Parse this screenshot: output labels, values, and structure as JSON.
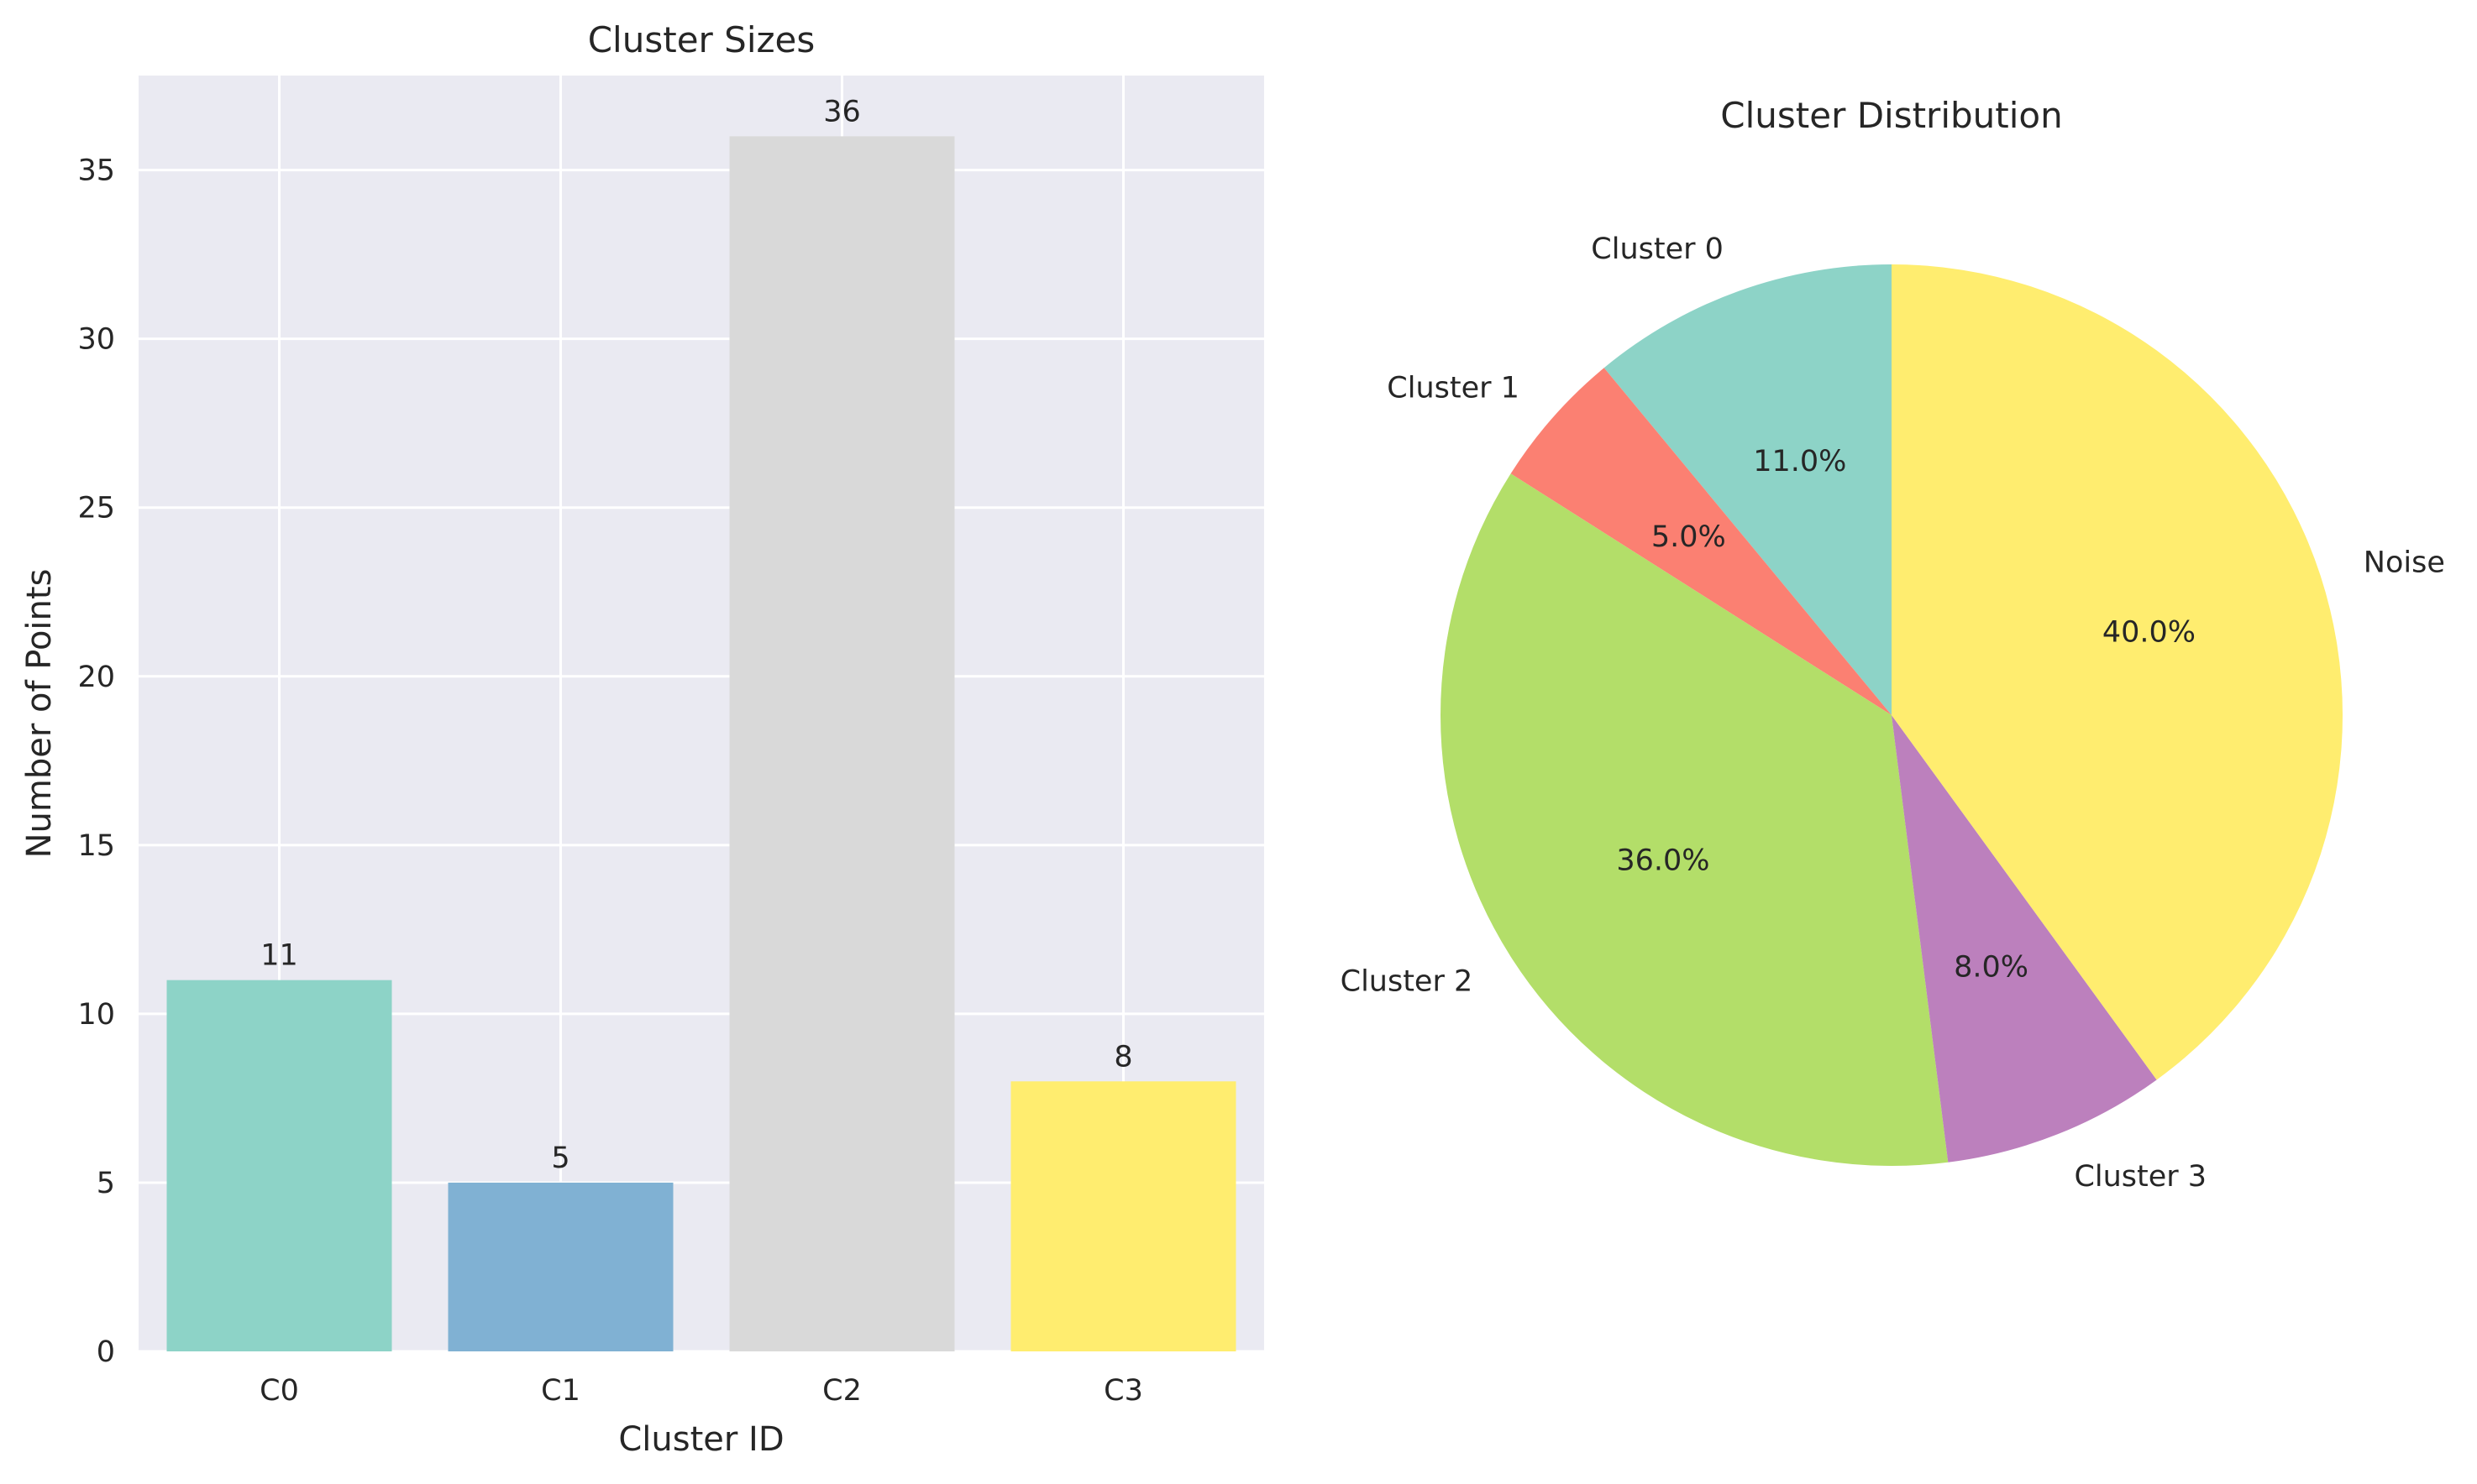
{
  "chart_data": [
    {
      "type": "bar",
      "title": "Cluster Sizes",
      "xlabel": "Cluster ID",
      "ylabel": "Number of Points",
      "categories": [
        "C0",
        "C1",
        "C2",
        "C3"
      ],
      "values": [
        11,
        5,
        36,
        8
      ],
      "value_labels": [
        "11",
        "5",
        "36",
        "8"
      ],
      "colors": [
        "#8dd3c7",
        "#80b1d3",
        "#d9d9d9",
        "#ffed6f"
      ],
      "ylim": [
        0,
        37.8
      ],
      "yticks": [
        0,
        5,
        10,
        15,
        20,
        25,
        30,
        35
      ],
      "ytick_labels": [
        "0",
        "5",
        "10",
        "15",
        "20",
        "25",
        "30",
        "35"
      ],
      "grid": true,
      "background": "#eaeaf2"
    },
    {
      "type": "pie",
      "title": "Cluster Distribution",
      "labels": [
        "Cluster 0",
        "Cluster 1",
        "Cluster 2",
        "Cluster 3",
        "Noise"
      ],
      "values": [
        11.0,
        5.0,
        36.0,
        8.0,
        40.0
      ],
      "pct_labels": [
        "11.0%",
        "5.0%",
        "36.0%",
        "8.0%",
        "40.0%"
      ],
      "colors": [
        "#8dd3c7",
        "#fb8072",
        "#b3de69",
        "#bc80bd",
        "#ffed6f"
      ],
      "start_angle": 90,
      "direction": "counterclockwise"
    }
  ]
}
